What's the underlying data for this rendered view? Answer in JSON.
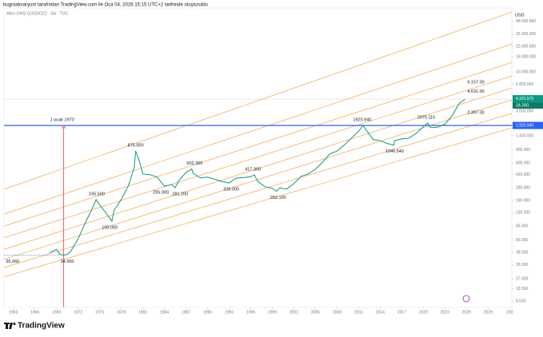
{
  "chart_data": {
    "type": "line",
    "header": "bugraakvaryum tarafından TradingView.com ile Oca 04, 2026 15:15 UTC+2 tarihinde oluşturuldu",
    "title": "Altın ONS (USD/OZ) · 3A · TVC",
    "currency": "USD",
    "brand": "TradingView",
    "color": "#089981",
    "log_scale": true,
    "x": [
      1968,
      1969,
      1969.5,
      1970,
      1970.5,
      1971,
      1972,
      1973,
      1974,
      1974.5,
      1975,
      1976,
      1976.7,
      1977,
      1978,
      1979,
      1979.8,
      1980,
      1980.5,
      1981,
      1982,
      1983,
      1984,
      1985,
      1985.5,
      1986,
      1987,
      1987.8,
      1988,
      1989,
      1990,
      1991,
      1992,
      1993,
      1994,
      1995,
      1996,
      1996.5,
      1997,
      1998,
      1999,
      1999.6,
      2000,
      2001,
      2002,
      2003,
      2004,
      2005,
      2006,
      2007,
      2008,
      2009,
      2010,
      2011,
      2011.6,
      2012,
      2013,
      2014,
      2015,
      2015.9,
      2016,
      2017,
      2018,
      2019,
      2020,
      2020.6,
      2021,
      2022,
      2023,
      2024,
      2025,
      2025.8
    ],
    "values": [
      38,
      42,
      36,
      35.06,
      36,
      40,
      58,
      95,
      150,
      195.5,
      165,
      125,
      100,
      140,
      195,
      300,
      520,
      875,
      650,
      430,
      420,
      390,
      295,
      310,
      281.2,
      350,
      450,
      502.3,
      440,
      380,
      390,
      365,
      340,
      326,
      380,
      385,
      395,
      417.3,
      340,
      290,
      275,
      252.1,
      280,
      270,
      320,
      400,
      430,
      500,
      620,
      800,
      870,
      1050,
      1300,
      1600,
      1920.94,
      1700,
      1250,
      1200,
      1100,
      1046.54,
      1200,
      1270,
      1300,
      1500,
      1850,
      2075.115,
      1800,
      1820,
      2000,
      2600,
      3800,
      4331.575
    ],
    "xlim": [
      1961.7,
      2032.3
    ],
    "xticks": [
      1963,
      1966,
      1969,
      1972,
      1975,
      1978,
      1981,
      1984,
      1987,
      1990,
      1993,
      1996,
      1999,
      2002,
      2005,
      2008,
      2011,
      2014,
      2017,
      2020,
      2023,
      2026,
      2029,
      {
        "value": 2032,
        "label": "203"
      }
    ],
    "ylim": [
      7,
      72000
    ],
    "yticks": [
      {
        "value": 48000,
        "label": "48.000.000"
      },
      {
        "value": 32000,
        "label": "32.000.000"
      },
      {
        "value": 22000,
        "label": "22.000.000"
      },
      {
        "value": 16000,
        "label": "16.000.000"
      },
      {
        "value": 10000,
        "label": "10.000.000"
      },
      {
        "value": 6800,
        "label": "6.800.000"
      },
      {
        "value": 3000,
        "label": "3.000.000"
      },
      {
        "value": 1400,
        "label": "1.400.000"
      },
      {
        "value": 900,
        "label": "900.000"
      },
      {
        "value": 600,
        "label": "600.000"
      },
      {
        "value": 420,
        "label": "420.000"
      },
      {
        "value": 280,
        "label": "280.000"
      },
      {
        "value": 190,
        "label": "190.000"
      },
      {
        "value": 130,
        "label": "130.000"
      },
      {
        "value": 86,
        "label": "86.000"
      },
      {
        "value": 56,
        "label": "56.000"
      },
      {
        "value": 38,
        "label": "38.000"
      },
      {
        "value": 26,
        "label": "26.000"
      },
      {
        "value": 17,
        "label": "17.000"
      },
      {
        "value": 12.5,
        "label": "12.500"
      },
      {
        "value": 8.5,
        "label": "8.500"
      }
    ],
    "annotations": [
      {
        "text": "35.060",
        "x": 1962.9,
        "y": 35.06,
        "position": "below"
      },
      {
        "text": "34.950",
        "x": 1970.5,
        "y": 34.95,
        "position": "below"
      },
      {
        "text": "100.000",
        "x": 1976.4,
        "y": 100,
        "position": "below"
      },
      {
        "text": "195.500",
        "x": 1974.6,
        "y": 195.5,
        "position": "above"
      },
      {
        "text": "875.000",
        "x": 1980,
        "y": 875,
        "position": "above"
      },
      {
        "text": "295.000",
        "x": 1983.5,
        "y": 295,
        "position": "below"
      },
      {
        "text": "281.200",
        "x": 1986.2,
        "y": 281.2,
        "position": "below"
      },
      {
        "text": "502.300",
        "x": 1988.2,
        "y": 502.3,
        "position": "above"
      },
      {
        "text": "326.000",
        "x": 1993.3,
        "y": 326,
        "position": "below"
      },
      {
        "text": "417.300",
        "x": 1996.3,
        "y": 417.3,
        "position": "above"
      },
      {
        "text": "252.100",
        "x": 1999.8,
        "y": 252.1,
        "position": "below"
      },
      {
        "text": "1920.940",
        "x": 2011.5,
        "y": 1920.94,
        "position": "above"
      },
      {
        "text": "1046.540",
        "x": 2016,
        "y": 1046.54,
        "position": "below"
      },
      {
        "text": "2075.115",
        "x": 2020.4,
        "y": 2075.115,
        "position": "above"
      },
      {
        "text": "6.157.00",
        "x": 2027.3,
        "y": 6157,
        "position": "above"
      },
      {
        "text": "4.631.00",
        "x": 2027.3,
        "y": 4631,
        "position": "above"
      },
      {
        "text": "2.397.00",
        "x": 2027.3,
        "y": 2397,
        "position": "above"
      }
    ],
    "channels": {
      "color": "#f7a440",
      "lines": [
        {
          "x": [
            1961.7,
            2032.3
          ],
          "y": [
            268,
            63450
          ]
        },
        {
          "x": [
            1961.7,
            2032.3
          ],
          "y": [
            125,
            23700
          ]
        },
        {
          "x": [
            1961.7,
            2032.3
          ],
          "y": [
            86,
            13430
          ]
        },
        {
          "x": [
            1961.7,
            2032.3
          ],
          "y": [
            60,
            8840
          ]
        },
        {
          "x": [
            1961.7,
            2032.3
          ],
          "y": [
            42,
            6120
          ]
        },
        {
          "x": [
            1961.7,
            2032.3
          ],
          "y": [
            31,
            4228
          ]
        },
        {
          "x": [
            1961.7,
            2032.3
          ],
          "y": [
            24,
            2781
          ]
        },
        {
          "x": [
            1961.7,
            2032.3
          ],
          "y": [
            18,
            1785
          ]
        }
      ]
    },
    "hline": {
      "value": 1920.94,
      "label": "1.920.940",
      "color": "#2962ff"
    },
    "ref_line": {
      "value": 35.06,
      "x": [
        1961.7,
        1969.5
      ],
      "color": "#2962ff"
    },
    "vline": {
      "x": 1970,
      "label": "1 ocak 1970",
      "color": "#f23645"
    },
    "last_price": {
      "value": 4331.575,
      "label": "4.331.575",
      "countdown": "2A 28G",
      "color": "#089981"
    }
  }
}
